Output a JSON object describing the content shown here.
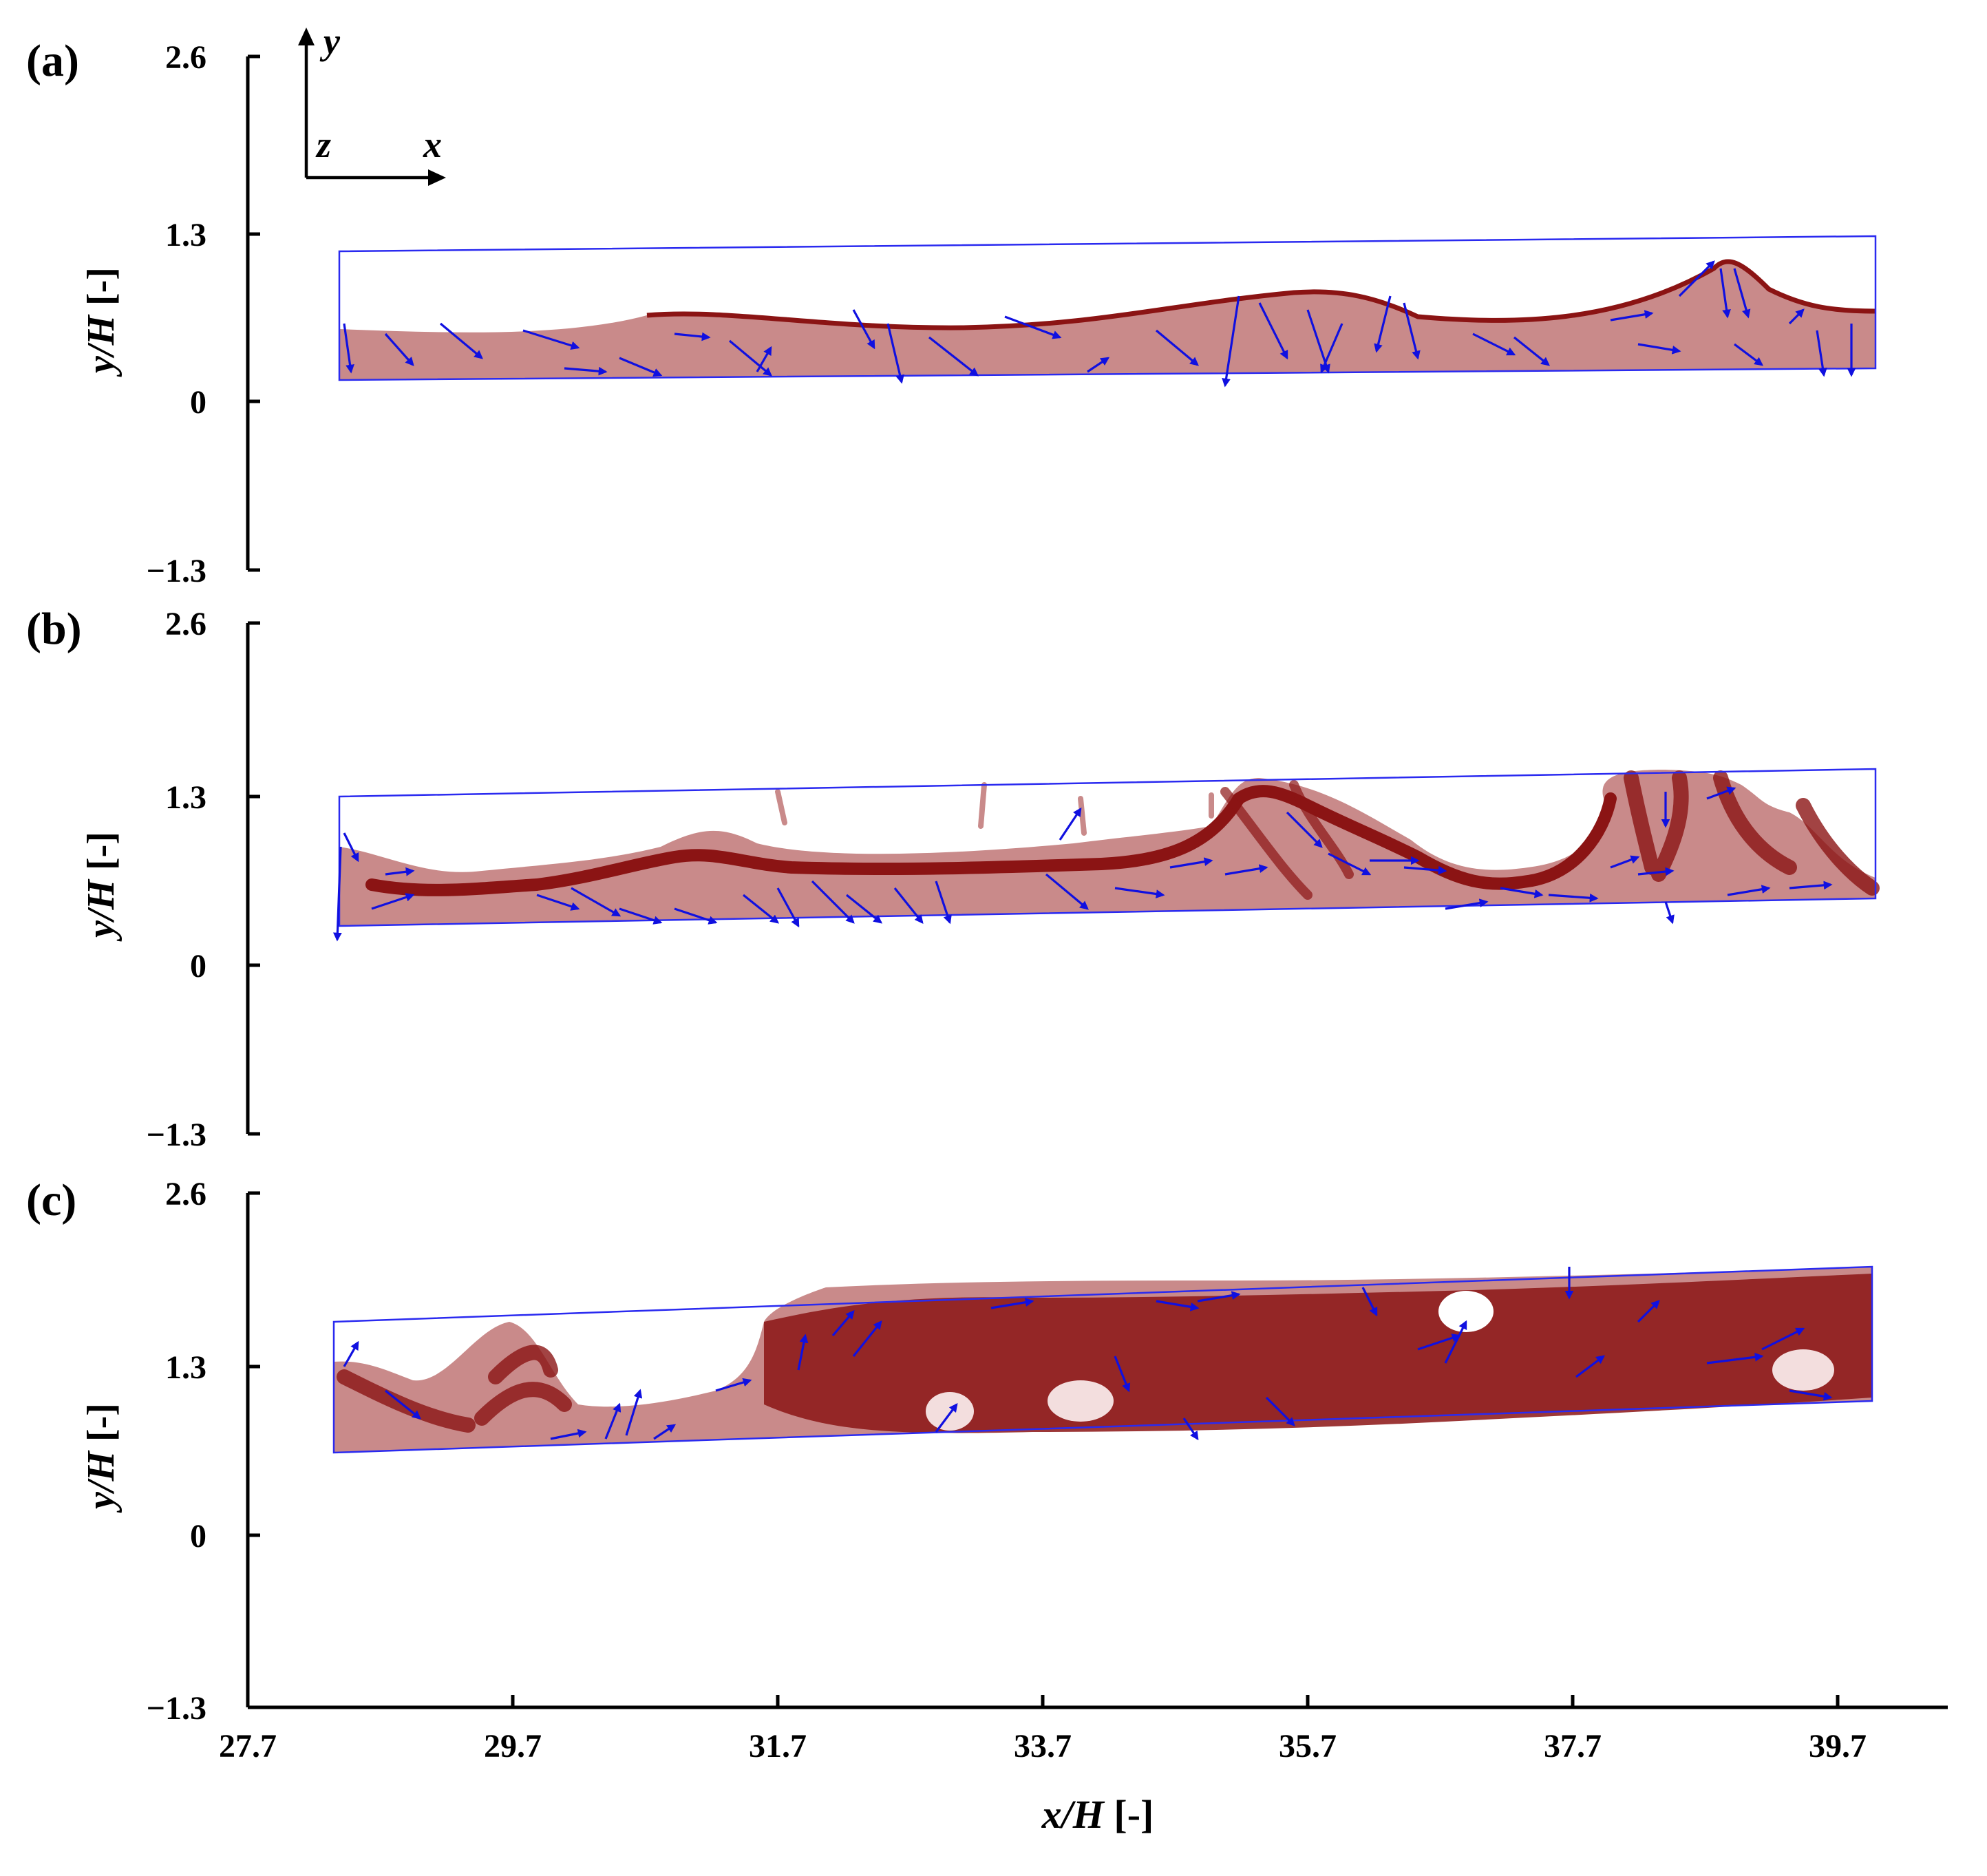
{
  "panels": [
    {
      "label": "(a)",
      "yaxis_label_var": "y/H",
      "yaxis_label_unit": "[-]",
      "yticks": [
        "2.6",
        "1.3",
        "0",
        "−1.3"
      ]
    },
    {
      "label": "(b)",
      "yaxis_label_var": "y/H",
      "yaxis_label_unit": "[-]",
      "yticks": [
        "2.6",
        "1.3",
        "0",
        "−1.3"
      ]
    },
    {
      "label": "(c)",
      "yaxis_label_var": "y/H",
      "yaxis_label_unit": "[-]",
      "yticks": [
        "2.6",
        "1.3",
        "0",
        "−1.3"
      ]
    }
  ],
  "xaxis": {
    "label_var": "x/H",
    "label_unit": "[-]",
    "ticks": [
      "27.7",
      "29.7",
      "31.7",
      "33.7",
      "35.7",
      "37.7",
      "39.7"
    ]
  },
  "coordinate_triad": {
    "y": "y",
    "z": "z",
    "x": "x"
  },
  "colors": {
    "liquid_light": "#c98a8a",
    "liquid_dark": "#8b1414",
    "vector": "#1010e0",
    "domain_outline": "#2a2af0"
  }
}
